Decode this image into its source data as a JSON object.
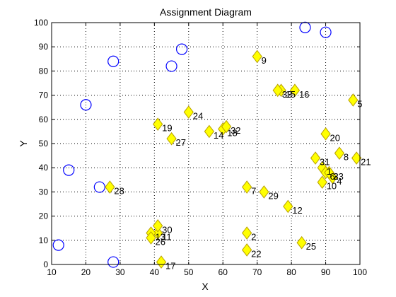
{
  "chart_data": {
    "type": "scatter",
    "title": "Assignment Diagram",
    "xlabel": "X",
    "ylabel": "Y",
    "xlim": [
      10,
      100
    ],
    "ylim": [
      0,
      100
    ],
    "xticks": [
      10,
      20,
      30,
      40,
      50,
      60,
      70,
      80,
      90,
      100
    ],
    "yticks": [
      0,
      10,
      20,
      30,
      40,
      50,
      60,
      70,
      80,
      90,
      100
    ],
    "grid": true,
    "grid_style": "dotted",
    "colors": {
      "circle_stroke": "#0000ff",
      "diamond_fill": "#ffff00",
      "diamond_stroke": "#b8a000",
      "axis": "#000000",
      "grid": "#000000"
    },
    "circles": [
      {
        "x": 12,
        "y": 8
      },
      {
        "x": 15,
        "y": 39
      },
      {
        "x": 20,
        "y": 66
      },
      {
        "x": 24,
        "y": 32
      },
      {
        "x": 28,
        "y": 84
      },
      {
        "x": 28,
        "y": 1
      },
      {
        "x": 45,
        "y": 82
      },
      {
        "x": 48,
        "y": 89
      },
      {
        "x": 84,
        "y": 98
      },
      {
        "x": 90,
        "y": 96
      }
    ],
    "diamonds": [
      {
        "label": "1",
        "x": 89,
        "y": 40
      },
      {
        "label": "2",
        "x": 67,
        "y": 13
      },
      {
        "label": "3",
        "x": 91,
        "y": 38
      },
      {
        "label": "4",
        "x": 92,
        "y": 36
      },
      {
        "label": "5",
        "x": 98,
        "y": 68
      },
      {
        "label": "6",
        "x": 90,
        "y": 38
      },
      {
        "label": "7",
        "x": 67,
        "y": 32
      },
      {
        "label": "8",
        "x": 94,
        "y": 46
      },
      {
        "label": "9",
        "x": 70,
        "y": 86
      },
      {
        "label": "10",
        "x": 89,
        "y": 34
      },
      {
        "label": "11",
        "x": 41,
        "y": 13
      },
      {
        "label": "12",
        "x": 79,
        "y": 24
      },
      {
        "label": "13",
        "x": 39,
        "y": 13
      },
      {
        "label": "14",
        "x": 56,
        "y": 55
      },
      {
        "label": "15",
        "x": 77,
        "y": 72
      },
      {
        "label": "16",
        "x": 81,
        "y": 72
      },
      {
        "label": "17",
        "x": 42,
        "y": 1
      },
      {
        "label": "18",
        "x": 60,
        "y": 56
      },
      {
        "label": "19",
        "x": 41,
        "y": 58
      },
      {
        "label": "20",
        "x": 90,
        "y": 54
      },
      {
        "label": "21",
        "x": 99,
        "y": 44
      },
      {
        "label": "22",
        "x": 67,
        "y": 6
      },
      {
        "label": "23",
        "x": 91,
        "y": 38
      },
      {
        "label": "24",
        "x": 50,
        "y": 63
      },
      {
        "label": "25",
        "x": 83,
        "y": 9
      },
      {
        "label": "26",
        "x": 39,
        "y": 11
      },
      {
        "label": "27",
        "x": 45,
        "y": 52
      },
      {
        "label": "28",
        "x": 27,
        "y": 32
      },
      {
        "label": "29",
        "x": 72,
        "y": 30
      },
      {
        "label": "30",
        "x": 41,
        "y": 16
      },
      {
        "label": "31",
        "x": 87,
        "y": 44
      },
      {
        "label": "32",
        "x": 61,
        "y": 57
      },
      {
        "label": "33",
        "x": 76,
        "y": 72
      }
    ]
  }
}
